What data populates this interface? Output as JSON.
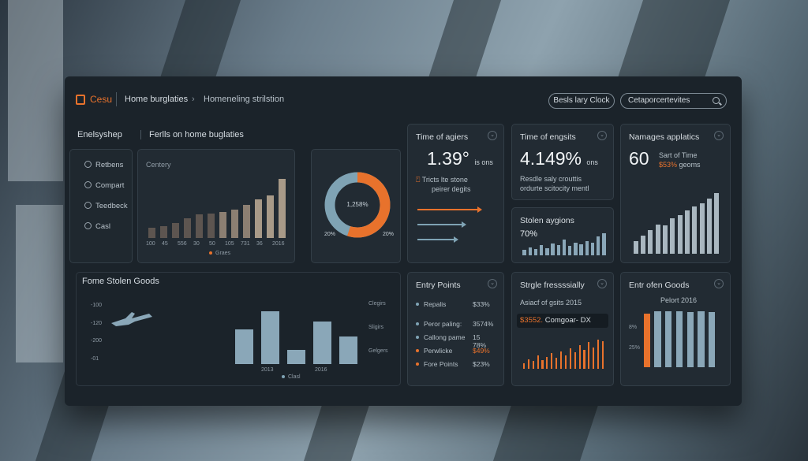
{
  "header": {
    "logo_text": "Cesu",
    "breadcrumb_1": "Home burglaties",
    "breadcrumb_sep": "›",
    "breadcrumb_2": "Homeneling strilstion",
    "pill_button": "Besls lary Clock",
    "search_value": "Cetaporcertevites"
  },
  "sidebar": {
    "title": "Enelsyshep",
    "items": [
      {
        "label": "Retbens",
        "icon": "face-icon"
      },
      {
        "label": "Compart",
        "icon": "compare-icon"
      },
      {
        "label": "Teedbeck",
        "icon": "feedback-icon"
      },
      {
        "label": "Casl",
        "icon": "cash-icon"
      }
    ]
  },
  "overview": {
    "title": "Ferlls on home buglaties",
    "chart_label": "Centery",
    "x_ticks": [
      "100",
      "45",
      "556",
      "30",
      "50",
      "105",
      "731",
      "36",
      "2016"
    ],
    "legend": "Graes"
  },
  "donut": {
    "center": "1,258%",
    "left_label": "20%",
    "right_label": "20%"
  },
  "time_agiers": {
    "title": "Time of agiers",
    "value": "1.39°",
    "unit": "is ons",
    "sub_line1": "Tricts lte stone",
    "sub_line2": "peirer degits"
  },
  "time_engsits": {
    "title": "Time of engsits",
    "value": "4.149%",
    "unit": "ons",
    "sub_line1": "Resdle saly crouttis",
    "sub_line2": "ordurte scitocity mentl"
  },
  "stolen_regions": {
    "title": "Stolen aygions",
    "value": "70%"
  },
  "manages": {
    "title": "Namages applatics",
    "value": "60",
    "sub_line1": "Sart of Time",
    "sub_line2_accent": "$53%",
    "sub_line2_rest": "geoms"
  },
  "stolen_goods": {
    "title": "Fome Stolen Goods",
    "y_ticks": [
      "-100",
      "-120",
      "-200",
      "-01"
    ],
    "right_ticks": [
      "Clegirs",
      "Sligirs",
      "Gelgers"
    ],
    "x_ticks": [
      "2013",
      "2016"
    ],
    "legend": "Clasl"
  },
  "entry_points": {
    "title": "Entry Points",
    "rows": [
      {
        "label": "Repalis",
        "value": "$33%",
        "color": "#7fa3b4"
      },
      {
        "label": "Peror paling:",
        "value": "3574%",
        "color": "#7fa3b4"
      },
      {
        "label": "Callong pame",
        "value": "15 78%",
        "color": "#7fa3b4"
      },
      {
        "label": "Perwlicke",
        "value": "$49%",
        "color": "#e8722c"
      },
      {
        "label": "Fore Points",
        "value": "$23%",
        "color": "#e8722c"
      }
    ]
  },
  "strgle": {
    "title": "Strgle fressssially",
    "sub": "Asiacf of gsits 2015",
    "value_accent": "$3552.",
    "value_rest": "Comgoar- DX"
  },
  "entry_goods": {
    "title": "Entr ofen Goods",
    "sub": "Pelort 2016",
    "y_ticks": [
      "8%",
      "25%"
    ]
  },
  "colors": {
    "accent": "#e8722c",
    "bar": "#8aa7b8",
    "bar_light": "#a9b7c0",
    "panel": "#1b232a"
  },
  "chart_data": [
    {
      "type": "bar",
      "title": "Ferlls on home buglaties",
      "categories": [
        "1",
        "2",
        "3",
        "4",
        "5",
        "6",
        "7",
        "8",
        "9",
        "10",
        "11",
        "12"
      ],
      "values": [
        9,
        10,
        13,
        17,
        20,
        21,
        22,
        24,
        28,
        33,
        36,
        50
      ],
      "ylim": [
        0,
        55
      ]
    },
    {
      "type": "pie",
      "title": "",
      "categories": [
        "blue",
        "orange"
      ],
      "values": [
        45,
        55
      ]
    },
    {
      "type": "bar",
      "title": "Fome Stolen Goods",
      "categories": [
        "a",
        "b",
        "c",
        "d",
        "e"
      ],
      "values": [
        48,
        72,
        20,
        58,
        38
      ],
      "ylim": [
        0,
        80
      ]
    },
    {
      "type": "bar",
      "title": "Stolen aygions",
      "categories": [
        "1",
        "2",
        "3",
        "4",
        "5",
        "6",
        "7",
        "8",
        "9",
        "10",
        "11",
        "12",
        "13",
        "14",
        "15"
      ],
      "values": [
        6,
        9,
        7,
        11,
        8,
        13,
        11,
        17,
        10,
        14,
        12,
        16,
        14,
        21,
        24
      ],
      "ylim": [
        0,
        26
      ]
    },
    {
      "type": "bar",
      "title": "Namages applatics",
      "categories": [
        "1",
        "2",
        "3",
        "4",
        "5",
        "6",
        "7",
        "8",
        "9",
        "10",
        "11",
        "12"
      ],
      "values": [
        12,
        17,
        22,
        27,
        26,
        33,
        36,
        40,
        44,
        47,
        51,
        56
      ],
      "ylim": [
        0,
        60
      ]
    },
    {
      "type": "bar",
      "title": "Strgle fressssially",
      "categories": [
        "1",
        "2",
        "3",
        "4",
        "5",
        "6",
        "7",
        "8",
        "9",
        "10",
        "11",
        "12",
        "13",
        "14",
        "15",
        "16",
        "17",
        "18"
      ],
      "values": [
        6,
        10,
        8,
        14,
        9,
        12,
        16,
        11,
        18,
        14,
        21,
        17,
        24,
        19,
        27,
        22,
        30,
        28
      ],
      "ylim": [
        0,
        32
      ]
    },
    {
      "type": "bar",
      "title": "Entr ofen Goods",
      "categories": [
        "1",
        "2",
        "3",
        "4",
        "5",
        "6",
        "7"
      ],
      "values": [
        72,
        75,
        75,
        75,
        74,
        75,
        74
      ],
      "ylim": [
        0,
        80
      ]
    }
  ]
}
